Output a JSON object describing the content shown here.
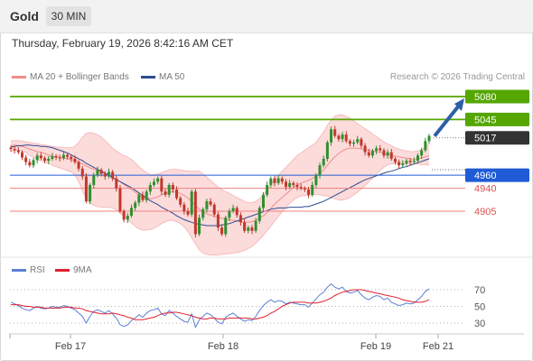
{
  "header": {
    "instrument": "Gold",
    "timeframe": "30 MIN"
  },
  "timestamp": "Thursday, February 19, 2026 8:42:16 AM CET",
  "copyright": "Research © 2026 Trading Central",
  "legend": {
    "bollinger": "MA 20 + Bollinger Bands",
    "ma50": "MA 50",
    "rsi": "RSI",
    "rsi_ma": "9MA"
  },
  "colors": {
    "bollinger": "#f08c8c",
    "band_fill": "#fbd5d5",
    "ma50": "#2e4d8f",
    "up": "#2f8f2f",
    "down": "#c0392b",
    "resistance": "#55a600",
    "pivot": "#1f5bd6",
    "support": "#f08080",
    "rsi": "#5b7fd6",
    "rsi_ma": "#e0202e",
    "arrow": "#2d5fa8"
  },
  "chart_data": [
    {
      "type": "candlestick",
      "title": "Gold",
      "timeframe": "30 MIN",
      "x_ticks": [
        "Feb 17",
        "Feb 18",
        "Feb 19",
        "Feb 21"
      ],
      "y_range": [
        4840,
        5110
      ],
      "last_price": 5017,
      "levels": [
        {
          "value": 5080,
          "label": "5080",
          "kind": "resistance"
        },
        {
          "value": 5045,
          "label": "5045",
          "kind": "resistance"
        },
        {
          "value": 5017,
          "label": "5017",
          "kind": "last"
        },
        {
          "value": 4960,
          "label": "4960",
          "kind": "pivot"
        },
        {
          "value": 4940,
          "label": "4940",
          "kind": "support"
        },
        {
          "value": 4905,
          "label": "4905",
          "kind": "support"
        }
      ],
      "arrow": {
        "from": 5017,
        "to": 5080,
        "direction": "up"
      },
      "closes": [
        5000,
        4998,
        4995,
        4987,
        4980,
        4975,
        4983,
        4990,
        4986,
        4982,
        4985,
        4989,
        4987,
        4986,
        4991,
        4988,
        4985,
        4980,
        4970,
        4958,
        4920,
        4945,
        4960,
        4968,
        4962,
        4958,
        4965,
        4955,
        4940,
        4905,
        4892,
        4898,
        4910,
        4918,
        4930,
        4922,
        4935,
        4945,
        4950,
        4955,
        4935,
        4930,
        4945,
        4938,
        4925,
        4915,
        4905,
        4900,
        4935,
        4870,
        4895,
        4908,
        4920,
        4915,
        4900,
        4880,
        4870,
        4895,
        4905,
        4910,
        4899,
        4888,
        4875,
        4880,
        4875,
        4890,
        4910,
        4930,
        4945,
        4955,
        4948,
        4955,
        4950,
        4942,
        4948,
        4945,
        4942,
        4940,
        4938,
        4930,
        4945,
        4960,
        4975,
        4985,
        5010,
        5030,
        5020,
        5015,
        5022,
        5012,
        5008,
        5010,
        5015,
        5005,
        4995,
        4990,
        4997,
        5001,
        4998,
        4990,
        4995,
        4985,
        4980,
        4975,
        4978,
        4982,
        4980,
        4982,
        4990,
        4998,
        5012,
        5020
      ],
      "ma20": [
        5005,
        5006,
        5005,
        5004,
        5002,
        5000,
        4998,
        4996,
        4995,
        4993,
        4991,
        4989,
        4988,
        4987,
        4986,
        4985,
        4984,
        4982,
        4980,
        4977,
        4974,
        4971,
        4969,
        4967,
        4965,
        4962,
        4960,
        4957,
        4954,
        4950,
        4946,
        4942,
        4938,
        4934,
        4930,
        4927,
        4925,
        4924,
        4925,
        4927,
        4930,
        4932,
        4934,
        4935,
        4934,
        4932,
        4929,
        4925,
        4920,
        4914,
        4908,
        4904,
        4901,
        4899,
        4897,
        4896,
        4894,
        4893,
        4892,
        4891,
        4890,
        4889,
        4888,
        4888,
        4889,
        4891,
        4894,
        4898,
        4903,
        4909,
        4916,
        4921,
        4926,
        4931,
        4936,
        4941,
        4945,
        4948,
        4950,
        4952,
        4955,
        4958,
        4963,
        4968,
        4975,
        4982,
        4988,
        4993,
        4997,
        5000,
        5001,
        5001,
        5001,
        5000,
        4999,
        4998,
        4997,
        4996,
        4995,
        4993,
        4991,
        4990,
        4989,
        4988,
        4987,
        4986,
        4985,
        4984,
        4985,
        4986,
        4988,
        4990
      ],
      "bb_upper": [
        5012,
        5013,
        5013,
        5012,
        5011,
        5010,
        5009,
        5008,
        5007,
        5006,
        5005,
        5004,
        5003,
        5003,
        5002,
        5002,
        5002,
        5004,
        5010,
        5018,
        5024,
        5025,
        5024,
        5022,
        5018,
        5013,
        5007,
        5001,
        4997,
        4993,
        4990,
        4988,
        4984,
        4979,
        4973,
        4968,
        4964,
        4961,
        4961,
        4962,
        4964,
        4966,
        4968,
        4969,
        4969,
        4968,
        4967,
        4966,
        4966,
        4966,
        4966,
        4962,
        4957,
        4952,
        4947,
        4942,
        4938,
        4935,
        4932,
        4929,
        4926,
        4923,
        4920,
        4918,
        4918,
        4920,
        4924,
        4930,
        4938,
        4946,
        4954,
        4960,
        4966,
        4972,
        4978,
        4984,
        4990,
        4994,
        4998,
        5002,
        5006,
        5010,
        5018,
        5026,
        5036,
        5044,
        5050,
        5052,
        5052,
        5050,
        5047,
        5043,
        5039,
        5035,
        5031,
        5027,
        5023,
        5019,
        5015,
        5011,
        5008,
        5005,
        5002,
        5000,
        4998,
        4997,
        4996,
        4996,
        4997,
        4999,
        5003,
        5008
      ],
      "bb_lower": [
        4996,
        4998,
        4998,
        4997,
        4994,
        4990,
        4987,
        4984,
        4982,
        4980,
        4978,
        4975,
        4973,
        4971,
        4969,
        4967,
        4965,
        4960,
        4950,
        4936,
        4924,
        4917,
        4914,
        4912,
        4911,
        4911,
        4911,
        4910,
        4907,
        4902,
        4897,
        4892,
        4887,
        4882,
        4878,
        4876,
        4876,
        4877,
        4879,
        4882,
        4886,
        4889,
        4891,
        4891,
        4889,
        4886,
        4881,
        4874,
        4864,
        4855,
        4846,
        4841,
        4839,
        4838,
        4838,
        4838,
        4839,
        4840,
        4840,
        4841,
        4842,
        4843,
        4845,
        4848,
        4851,
        4856,
        4862,
        4868,
        4875,
        4882,
        4890,
        4897,
        4904,
        4911,
        4917,
        4922,
        4926,
        4928,
        4929,
        4929,
        4930,
        4930,
        4930,
        4929,
        4928,
        4926,
        4924,
        4922,
        4922,
        4923,
        4926,
        4930,
        4934,
        4939,
        4944,
        4950,
        4955,
        4961,
        4967,
        4972,
        4976,
        4977,
        4978,
        4978,
        4978,
        4977,
        4977,
        4977,
        4977,
        4976,
        4976,
        4975
      ],
      "ma50": [
        5003,
        5004,
        5005,
        5005,
        5006,
        5006,
        5005,
        5005,
        5004,
        5004,
        5003,
        5002,
        5000,
        4998,
        4996,
        4994,
        4991,
        4988,
        4985,
        4982,
        4978,
        4975,
        4972,
        4969,
        4966,
        4963,
        4960,
        4956,
        4953,
        4950,
        4947,
        4944,
        4941,
        4937,
        4933,
        4929,
        4925,
        4921,
        4918,
        4915,
        4911,
        4908,
        4905,
        4902,
        4898,
        4895,
        4892,
        4890,
        4888,
        4886,
        4885,
        4884,
        4883,
        4883,
        4883,
        4883,
        4884,
        4885,
        4886,
        4888,
        4890,
        4892,
        4894,
        4896,
        4898,
        4900,
        4902,
        4904,
        4906,
        4908,
        4909,
        4910,
        4910,
        4910,
        4911,
        4911,
        4911,
        4911,
        4912,
        4912,
        4914,
        4916,
        4918,
        4920,
        4923,
        4926,
        4929,
        4932,
        4935,
        4938,
        4941,
        4944,
        4947,
        4950,
        4953,
        4955,
        4957,
        4959,
        4961,
        4963,
        4965,
        4966,
        4968,
        4970,
        4972,
        4973,
        4975,
        4977,
        4979,
        4981,
        4983,
        4985
      ]
    },
    {
      "type": "line",
      "title": "RSI",
      "y_ticks": [
        30,
        50,
        70
      ],
      "y_range": [
        20,
        80
      ],
      "series": [
        {
          "name": "RSI",
          "values": [
            55,
            53,
            51,
            48,
            46,
            45,
            48,
            50,
            48,
            47,
            48,
            50,
            49,
            49,
            51,
            50,
            48,
            46,
            42,
            38,
            30,
            38,
            44,
            46,
            44,
            42,
            45,
            41,
            36,
            28,
            26,
            28,
            33,
            36,
            40,
            37,
            42,
            45,
            46,
            48,
            41,
            39,
            45,
            42,
            38,
            35,
            32,
            31,
            41,
            25,
            34,
            38,
            42,
            40,
            36,
            31,
            29,
            37,
            40,
            42,
            38,
            35,
            32,
            34,
            33,
            38,
            45,
            51,
            55,
            58,
            55,
            57,
            56,
            53,
            55,
            54,
            53,
            52,
            52,
            49,
            54,
            59,
            64,
            67,
            73,
            77,
            73,
            71,
            73,
            68,
            66,
            67,
            69,
            64,
            60,
            58,
            61,
            63,
            62,
            58,
            60,
            55,
            53,
            51,
            52,
            54,
            53,
            54,
            58,
            62,
            68,
            71
          ]
        },
        {
          "name": "9MA",
          "values": [
            52,
            52,
            52,
            51,
            50,
            50,
            49,
            49,
            49,
            48,
            48,
            48,
            48,
            48,
            49,
            49,
            49,
            48,
            48,
            47,
            45,
            44,
            43,
            42,
            41,
            41,
            41,
            42,
            41,
            40,
            39,
            37,
            36,
            34,
            34,
            34,
            35,
            36,
            37,
            39,
            41,
            42,
            42,
            43,
            43,
            42,
            41,
            40,
            39,
            37,
            36,
            35,
            35,
            36,
            36,
            35,
            35,
            35,
            36,
            36,
            36,
            36,
            36,
            36,
            35,
            35,
            36,
            37,
            39,
            42,
            44,
            47,
            50,
            52,
            54,
            55,
            55,
            55,
            55,
            54,
            54,
            54,
            55,
            56,
            58,
            60,
            63,
            65,
            67,
            68,
            69,
            70,
            70,
            70,
            69,
            68,
            67,
            66,
            65,
            64,
            63,
            62,
            61,
            60,
            58,
            57,
            56,
            55,
            55,
            55,
            56,
            58
          ]
        }
      ]
    }
  ]
}
